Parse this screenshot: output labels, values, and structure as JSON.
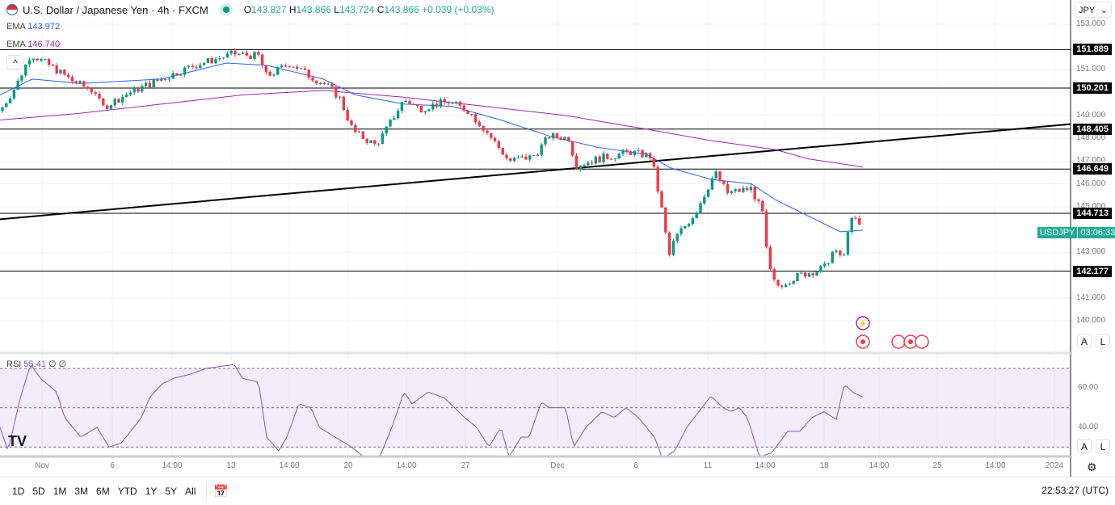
{
  "header": {
    "title": "U.S. Dollar / Japanese Yen · 4h · FXCM",
    "o_label": "O",
    "o": "143.827",
    "h_label": "H",
    "h": "143.866",
    "l_label": "L",
    "l": "143.724",
    "c_label": "C",
    "c": "143.866",
    "change": "+0.039 (+0.03%)"
  },
  "indicators": [
    {
      "name": "EMA",
      "value": "143.972",
      "color": "#2962ff"
    },
    {
      "name": "EMA",
      "value": "146.740",
      "color": "#9c27b0"
    }
  ],
  "rsi": {
    "name": "RSI",
    "value": "55.41",
    "params": "∅ ∅",
    "ticks": [
      "60.00",
      "40.00"
    ]
  },
  "currency_select": "JPY",
  "price_ticks": [
    "153.000",
    "151.000",
    "149.000",
    "148.000",
    "147.000",
    "146.000",
    "145.000",
    "143.000",
    "141.000",
    "140.000"
  ],
  "levels": [
    "151.889",
    "150.201",
    "148.405",
    "146.649",
    "144.713",
    "142.177"
  ],
  "symbol_tag": {
    "symbol": "USDJPY",
    "countdown": "03:06:33"
  },
  "time_ticks": [
    "Nov",
    "6",
    "14:00",
    "13",
    "14:00",
    "20",
    "14:00",
    "27",
    "Dec",
    "6",
    "11",
    "14:00",
    "18",
    "14:00",
    "25",
    "14:00",
    "2024"
  ],
  "scale_buttons": {
    "auto": "A",
    "log": "L"
  },
  "ranges": [
    "1D",
    "5D",
    "1M",
    "3M",
    "6M",
    "YTD",
    "1Y",
    "5Y",
    "All"
  ],
  "clock": "22:53:27 (UTC)",
  "colors": {
    "up": "#089981",
    "down": "#f23645",
    "ema50": "#2962ff",
    "ema200": "#9c27b0",
    "rsi": "#7e57c2"
  },
  "chart_data": {
    "type": "candlestick",
    "price_range": [
      139.3,
      153.6
    ],
    "close_path": [
      [
        0,
        149.2
      ],
      [
        20,
        150.3
      ],
      [
        38,
        151.7
      ],
      [
        70,
        151.0
      ],
      [
        90,
        150.5
      ],
      [
        120,
        150.0
      ],
      [
        125,
        149.3
      ],
      [
        160,
        150.0
      ],
      [
        200,
        150.6
      ],
      [
        240,
        151.2
      ],
      [
        290,
        151.7
      ],
      [
        320,
        151.6
      ],
      [
        330,
        150.7
      ],
      [
        360,
        151.3
      ],
      [
        380,
        150.8
      ],
      [
        405,
        150.3
      ],
      [
        420,
        149.8
      ],
      [
        437,
        148.3
      ],
      [
        465,
        147.7
      ],
      [
        475,
        148.2
      ],
      [
        500,
        149.7
      ],
      [
        520,
        149.3
      ],
      [
        540,
        149.5
      ],
      [
        555,
        149.6
      ],
      [
        580,
        149.2
      ],
      [
        600,
        148.4
      ],
      [
        630,
        147.0
      ],
      [
        660,
        147.2
      ],
      [
        680,
        148.1
      ],
      [
        705,
        148.0
      ],
      [
        712,
        146.8
      ],
      [
        740,
        147.1
      ],
      [
        780,
        147.4
      ],
      [
        806,
        147.2
      ],
      [
        820,
        144.7
      ],
      [
        828,
        142.8
      ],
      [
        835,
        143.6
      ],
      [
        860,
        144.7
      ],
      [
        885,
        146.5
      ],
      [
        900,
        145.6
      ],
      [
        930,
        145.8
      ],
      [
        945,
        144.6
      ],
      [
        950,
        142.5
      ],
      [
        960,
        141.5
      ],
      [
        990,
        142.0
      ],
      [
        1020,
        142.3
      ],
      [
        1030,
        143.0
      ],
      [
        1045,
        142.8
      ],
      [
        1050,
        144.2
      ],
      [
        1058,
        144.5
      ],
      [
        1068,
        143.85
      ]
    ],
    "ema50_path": [
      [
        0,
        149.9
      ],
      [
        40,
        150.6
      ],
      [
        100,
        150.4
      ],
      [
        200,
        150.6
      ],
      [
        280,
        151.3
      ],
      [
        330,
        151.2
      ],
      [
        400,
        150.6
      ],
      [
        440,
        149.9
      ],
      [
        500,
        149.5
      ],
      [
        560,
        149.4
      ],
      [
        620,
        148.8
      ],
      [
        680,
        148.1
      ],
      [
        740,
        147.6
      ],
      [
        800,
        147.3
      ],
      [
        830,
        146.7
      ],
      [
        880,
        146.2
      ],
      [
        930,
        146.0
      ],
      [
        960,
        145.3
      ],
      [
        1000,
        144.6
      ],
      [
        1040,
        143.9
      ],
      [
        1068,
        143.97
      ]
    ],
    "ema200_path": [
      [
        0,
        148.8
      ],
      [
        100,
        149.1
      ],
      [
        200,
        149.5
      ],
      [
        300,
        149.9
      ],
      [
        400,
        150.1
      ],
      [
        500,
        149.8
      ],
      [
        600,
        149.4
      ],
      [
        700,
        149.0
      ],
      [
        800,
        148.4
      ],
      [
        880,
        147.9
      ],
      [
        960,
        147.5
      ],
      [
        1000,
        147.1
      ],
      [
        1068,
        146.74
      ]
    ],
    "trendline": [
      [
        0,
        144.45
      ],
      [
        1325,
        148.62
      ]
    ],
    "rsi_path": [
      [
        0,
        40
      ],
      [
        10,
        28
      ],
      [
        25,
        55
      ],
      [
        38,
        72
      ],
      [
        50,
        65
      ],
      [
        70,
        58
      ],
      [
        80,
        45
      ],
      [
        100,
        35
      ],
      [
        120,
        40
      ],
      [
        135,
        30
      ],
      [
        150,
        32
      ],
      [
        175,
        45
      ],
      [
        185,
        55
      ],
      [
        200,
        62
      ],
      [
        215,
        65
      ],
      [
        235,
        67
      ],
      [
        255,
        70
      ],
      [
        290,
        72
      ],
      [
        300,
        65
      ],
      [
        320,
        63
      ],
      [
        330,
        35
      ],
      [
        345,
        28
      ],
      [
        355,
        35
      ],
      [
        370,
        52
      ],
      [
        385,
        50
      ],
      [
        395,
        40
      ],
      [
        415,
        35
      ],
      [
        435,
        30
      ],
      [
        450,
        25
      ],
      [
        470,
        25
      ],
      [
        485,
        40
      ],
      [
        500,
        58
      ],
      [
        510,
        52
      ],
      [
        530,
        58
      ],
      [
        550,
        55
      ],
      [
        575,
        45
      ],
      [
        590,
        40
      ],
      [
        605,
        30
      ],
      [
        620,
        40
      ],
      [
        630,
        25
      ],
      [
        645,
        35
      ],
      [
        655,
        35
      ],
      [
        670,
        53
      ],
      [
        680,
        50
      ],
      [
        700,
        50
      ],
      [
        710,
        30
      ],
      [
        725,
        40
      ],
      [
        745,
        48
      ],
      [
        760,
        45
      ],
      [
        775,
        50
      ],
      [
        790,
        45
      ],
      [
        810,
        35
      ],
      [
        820,
        24
      ],
      [
        835,
        28
      ],
      [
        850,
        40
      ],
      [
        865,
        48
      ],
      [
        880,
        56
      ],
      [
        895,
        50
      ],
      [
        905,
        48
      ],
      [
        915,
        50
      ],
      [
        925,
        45
      ],
      [
        940,
        25
      ],
      [
        955,
        27
      ],
      [
        975,
        38
      ],
      [
        990,
        38
      ],
      [
        1005,
        45
      ],
      [
        1020,
        48
      ],
      [
        1035,
        44
      ],
      [
        1045,
        62
      ],
      [
        1055,
        58
      ],
      [
        1068,
        55.4
      ]
    ],
    "rsi_bands": [
      30,
      50,
      70
    ]
  }
}
